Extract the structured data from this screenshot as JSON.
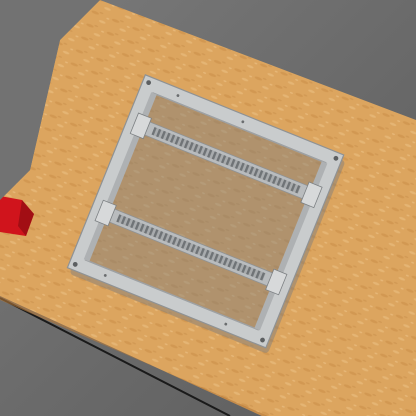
{
  "scene": {
    "description_label": "",
    "colors": {
      "floor": "#6f6f6f",
      "floor_dark": "#5a5a5a",
      "table_wood": "#d9a25c",
      "table_wood_light": "#e6b674",
      "table_wood_dark": "#c48a46",
      "frame_metal": "#c9cccd",
      "frame_shadow": "#8f9294",
      "rail_teeth": "#7c8083",
      "red_block": "#d0141c",
      "red_block_dark": "#8e0b11",
      "edge_line": "#1a1a1a"
    }
  }
}
